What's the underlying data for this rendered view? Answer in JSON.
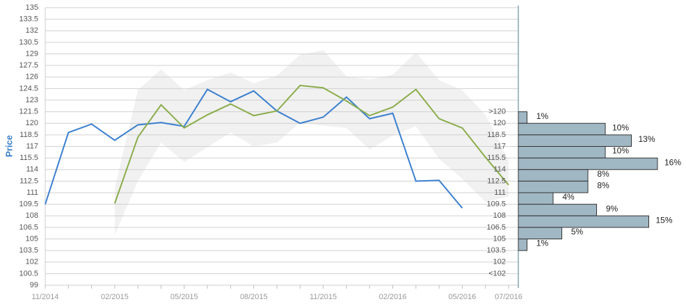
{
  "chart_data": {
    "type": "line",
    "y_label": "Price",
    "categories": [
      "11/2014",
      null,
      null,
      "02/2015",
      null,
      null,
      "05/2015",
      null,
      null,
      "08/2015",
      null,
      null,
      "11/2015",
      null,
      null,
      "02/2016",
      null,
      null,
      "05/2016",
      null,
      "07/2016"
    ],
    "series": [
      {
        "color": "#3a7fcf",
        "values": [
          109.5,
          118.8,
          119.9,
          117.8,
          119.8,
          120.1,
          119.6,
          124.4,
          122.8,
          124.2,
          121.6,
          120,
          120.8,
          123.4,
          120.6,
          121.3,
          112.5,
          112.6,
          109,
          null,
          null
        ]
      },
      {
        "color": "#8aac4a",
        "values": [
          null,
          null,
          null,
          109.6,
          118.2,
          122.4,
          119.4,
          121.1,
          122.5,
          121,
          121.6,
          124.9,
          124.6,
          122.9,
          121,
          122.1,
          124.4,
          120.6,
          119.4,
          115.6,
          112
        ]
      }
    ],
    "band": {
      "color": "#eeeeee",
      "upper": [
        null,
        null,
        null,
        111.6,
        124.3,
        127,
        124.3,
        125.6,
        126.6,
        125.2,
        126.2,
        128.9,
        129.5,
        126.1,
        125.7,
        126.3,
        129.2,
        125.6,
        124.3,
        121.1,
        115.2
      ],
      "lower": [
        null,
        null,
        null,
        105.5,
        112.5,
        117.5,
        115,
        116.9,
        118.8,
        117,
        117.5,
        120.1,
        119.7,
        119.4,
        116.6,
        118.4,
        119.6,
        115.4,
        112.8,
        109.8,
        110.5
      ]
    },
    "ylim": [
      99,
      135
    ],
    "yticks": [
      99,
      100.5,
      102,
      103.5,
      105,
      106.5,
      108,
      109.5,
      111,
      112.5,
      114,
      115.5,
      117,
      118.5,
      120,
      121.5,
      123,
      124.5,
      126,
      127.5,
      129,
      130.5,
      132,
      133.5,
      135
    ],
    "grid": true,
    "histogram": {
      "color": "#a0b7c4",
      "xlim": [
        0,
        16
      ],
      "bins": [
        121.5,
        120,
        118.5,
        117,
        115.5,
        114,
        112.5,
        111,
        109.5,
        108,
        106.5,
        105,
        103.5,
        102,
        100.5,
        99
      ],
      "labels": [
        ">120",
        "120",
        "118.5",
        "117",
        "115.5",
        "114",
        "112.5",
        "111",
        "109.5",
        "108",
        "106.5",
        "105",
        "103.5",
        "102",
        "<102"
      ],
      "values": [
        1,
        10,
        13,
        10,
        16,
        8,
        8,
        4,
        9,
        15,
        5,
        1,
        0,
        0,
        0
      ],
      "value_labels": [
        "1%",
        "10%",
        "13%",
        "10%",
        "16%",
        "8%",
        "8%",
        "4%",
        "9%",
        "15%",
        "5%",
        "1%",
        null,
        null,
        null
      ]
    }
  }
}
